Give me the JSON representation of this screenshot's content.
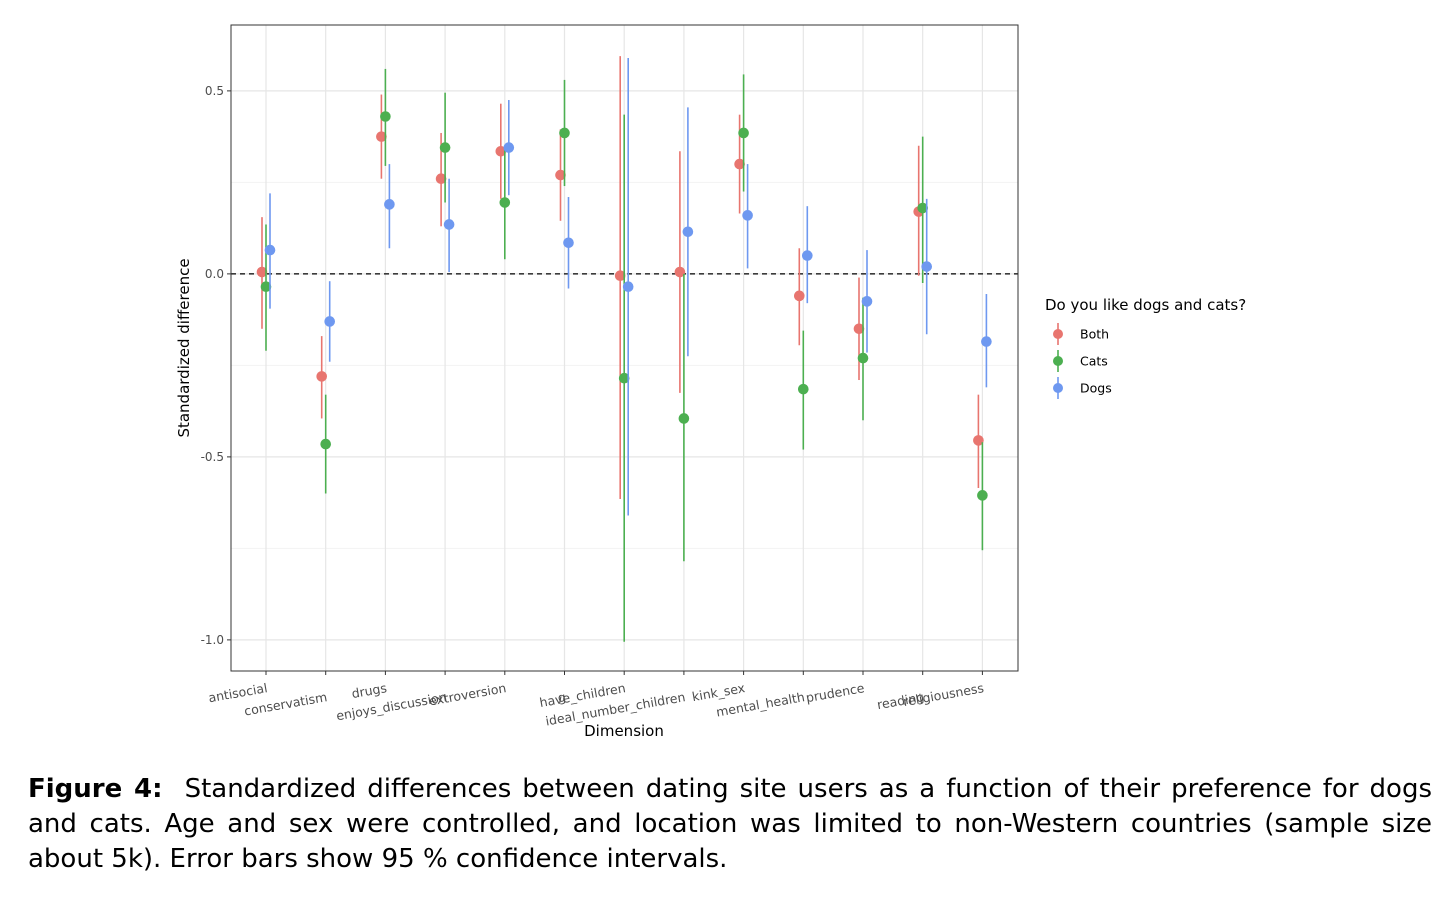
{
  "chart_data": {
    "type": "scatter",
    "subtype": "point-with-errorbars",
    "xlabel": "Dimension",
    "ylabel": "Standardized difference",
    "ylim": [
      -1.085,
      0.68
    ],
    "yticks": [
      0.5,
      0.0,
      -0.5,
      -1.0
    ],
    "ytick_labels": [
      "0.5",
      "0.0",
      "-0.5",
      "-1.0"
    ],
    "reference_line": 0,
    "categories": [
      "antisocial",
      "conservatism",
      "drugs",
      "enjoys_discussion",
      "extroversion",
      "g",
      "have_children",
      "ideal_number_children",
      "kink_sex",
      "mental_health",
      "prudence",
      "reading",
      "religiousness"
    ],
    "legend": {
      "title": "Do you like dogs and cats?",
      "placement": "right"
    },
    "series": [
      {
        "name": "Both",
        "color": "#E8756F",
        "values": [
          0.005,
          -0.28,
          0.375,
          0.26,
          0.335,
          0.27,
          -0.005,
          0.005,
          0.3,
          -0.06,
          -0.15,
          0.17,
          -0.455
        ],
        "lower": [
          -0.15,
          -0.395,
          0.26,
          0.13,
          0.205,
          0.145,
          -0.615,
          -0.325,
          0.165,
          -0.195,
          -0.29,
          -0.005,
          -0.585
        ],
        "upper": [
          0.155,
          -0.17,
          0.49,
          0.385,
          0.465,
          0.395,
          0.595,
          0.335,
          0.435,
          0.07,
          -0.01,
          0.35,
          -0.33
        ]
      },
      {
        "name": "Cats",
        "color": "#4CAF50",
        "values": [
          -0.035,
          -0.465,
          0.43,
          0.345,
          0.195,
          0.385,
          -0.285,
          -0.395,
          0.385,
          -0.315,
          -0.23,
          0.18,
          -0.605
        ],
        "lower": [
          -0.21,
          -0.6,
          0.295,
          0.195,
          0.04,
          0.24,
          -1.005,
          -0.785,
          0.225,
          -0.48,
          -0.4,
          -0.025,
          -0.755
        ],
        "upper": [
          0.135,
          -0.33,
          0.56,
          0.495,
          0.35,
          0.53,
          0.435,
          0.0,
          0.545,
          -0.155,
          -0.065,
          0.375,
          -0.46
        ]
      },
      {
        "name": "Dogs",
        "color": "#6E98F0",
        "values": [
          0.065,
          -0.13,
          0.19,
          0.135,
          0.345,
          0.085,
          -0.035,
          0.115,
          0.16,
          0.05,
          -0.075,
          0.02,
          -0.185
        ],
        "lower": [
          -0.095,
          -0.24,
          0.07,
          0.005,
          0.215,
          -0.04,
          -0.66,
          -0.225,
          0.015,
          -0.08,
          -0.215,
          -0.165,
          -0.31
        ],
        "upper": [
          0.22,
          -0.02,
          0.3,
          0.26,
          0.475,
          0.21,
          0.59,
          0.455,
          0.3,
          0.185,
          0.065,
          0.205,
          -0.055
        ]
      }
    ]
  },
  "caption": {
    "label": "Figure 4:",
    "text": "Standardized differences between dating site users as a function of their preference for dogs and cats. Age and sex were controlled, and location was limited to non-Western countries (sample size about 5k). Error bars show 95 % confidence intervals."
  }
}
